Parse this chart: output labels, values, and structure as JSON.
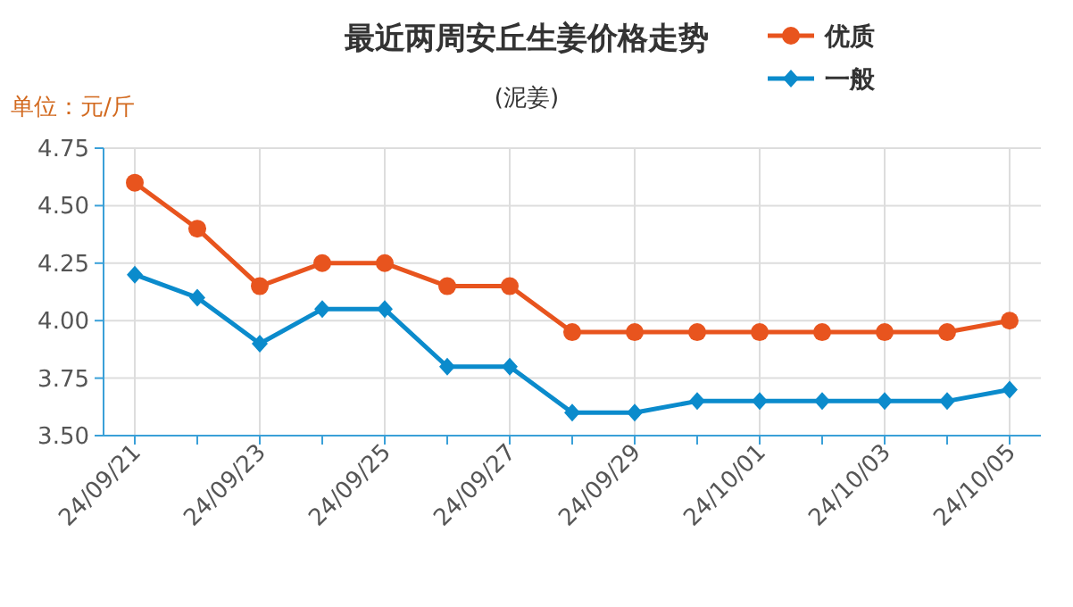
{
  "chart_data": {
    "type": "line",
    "title": "最近两周安丘生姜价格走势",
    "subtitle": "(泥姜)",
    "ylabel": "单位：元/斤",
    "categories": [
      "24/09/21",
      null,
      "24/09/23",
      null,
      "24/09/25",
      null,
      "24/09/27",
      null,
      "24/09/29",
      null,
      "24/10/01",
      null,
      "24/10/03",
      null,
      "24/10/05"
    ],
    "series": [
      {
        "name": "优质",
        "color": "#e8541e",
        "marker": "circle",
        "values": [
          4.6,
          4.4,
          4.15,
          4.25,
          4.25,
          4.15,
          4.15,
          3.95,
          3.95,
          3.95,
          3.95,
          3.95,
          3.95,
          3.95,
          4.0
        ]
      },
      {
        "name": "一般",
        "color": "#0b8bcc",
        "marker": "diamond",
        "values": [
          4.2,
          4.1,
          3.9,
          4.05,
          4.05,
          3.8,
          3.8,
          3.6,
          3.6,
          3.65,
          3.65,
          3.65,
          3.65,
          3.65,
          3.7
        ]
      }
    ],
    "ylim": [
      3.5,
      4.75
    ],
    "yticks": [
      {
        "value": 3.5,
        "label": "3.50"
      },
      {
        "value": 3.75,
        "label": "3.75"
      },
      {
        "value": 4,
        "label": "4.00"
      },
      {
        "value": 4.25,
        "label": "4.25"
      },
      {
        "value": 4.5,
        "label": "4.50"
      },
      {
        "value": 4.75,
        "label": "4.75"
      }
    ],
    "grid": true,
    "legend": "top right",
    "line_style": "solid"
  }
}
